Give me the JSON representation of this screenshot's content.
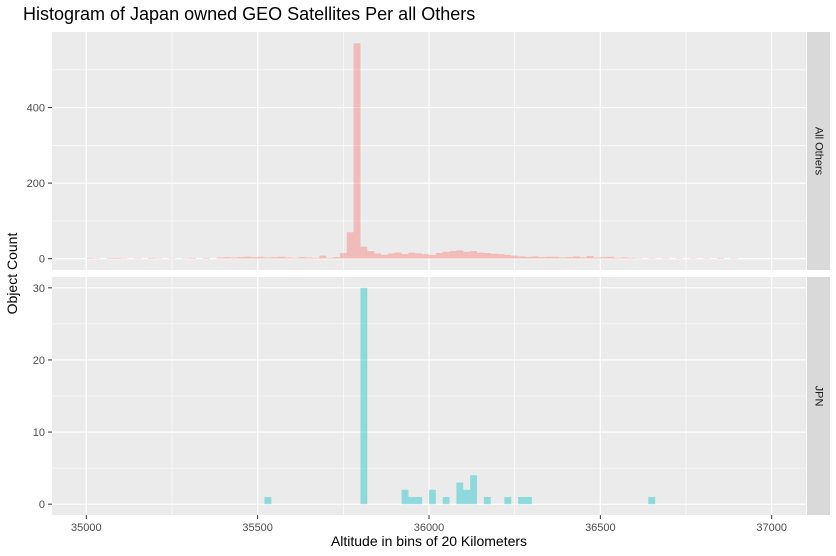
{
  "chart_data": {
    "type": "bar",
    "title": "Histogram of Japan owned GEO Satellites Per all Others",
    "xlabel": "Altitude in bins of 20 Kilometers",
    "ylabel": "Object Count",
    "xlim": [
      34900,
      37100
    ],
    "bin_width": 20,
    "x_ticks": [
      35000,
      35500,
      36000,
      36500,
      37000
    ],
    "legend": "none",
    "grid": true,
    "panels": [
      {
        "name": "All Others",
        "color": "#F8766D",
        "ylim": [
          -30,
          600
        ],
        "y_ticks": [
          0,
          200,
          400
        ],
        "bins": [
          {
            "x": 35010,
            "y": 2
          },
          {
            "x": 35030,
            "y": 1
          },
          {
            "x": 35070,
            "y": 2
          },
          {
            "x": 35090,
            "y": 2
          },
          {
            "x": 35110,
            "y": 1
          },
          {
            "x": 35150,
            "y": 1
          },
          {
            "x": 35190,
            "y": 2
          },
          {
            "x": 35210,
            "y": 1
          },
          {
            "x": 35250,
            "y": 1
          },
          {
            "x": 35290,
            "y": 1
          },
          {
            "x": 35310,
            "y": 2
          },
          {
            "x": 35350,
            "y": 2
          },
          {
            "x": 35390,
            "y": 3
          },
          {
            "x": 35410,
            "y": 4
          },
          {
            "x": 35430,
            "y": 3
          },
          {
            "x": 35450,
            "y": 4
          },
          {
            "x": 35470,
            "y": 5
          },
          {
            "x": 35490,
            "y": 4
          },
          {
            "x": 35510,
            "y": 5
          },
          {
            "x": 35530,
            "y": 3
          },
          {
            "x": 35550,
            "y": 4
          },
          {
            "x": 35570,
            "y": 5
          },
          {
            "x": 35590,
            "y": 3
          },
          {
            "x": 35610,
            "y": 2
          },
          {
            "x": 35630,
            "y": 4
          },
          {
            "x": 35650,
            "y": 3
          },
          {
            "x": 35670,
            "y": 2
          },
          {
            "x": 35690,
            "y": 8
          },
          {
            "x": 35710,
            "y": 2
          },
          {
            "x": 35730,
            "y": 4
          },
          {
            "x": 35750,
            "y": 15
          },
          {
            "x": 35770,
            "y": 70
          },
          {
            "x": 35790,
            "y": 570
          },
          {
            "x": 35810,
            "y": 32
          },
          {
            "x": 35830,
            "y": 20
          },
          {
            "x": 35850,
            "y": 14
          },
          {
            "x": 35870,
            "y": 10
          },
          {
            "x": 35890,
            "y": 14
          },
          {
            "x": 35910,
            "y": 16
          },
          {
            "x": 35930,
            "y": 12
          },
          {
            "x": 35950,
            "y": 16
          },
          {
            "x": 35970,
            "y": 14
          },
          {
            "x": 35990,
            "y": 12
          },
          {
            "x": 36010,
            "y": 10
          },
          {
            "x": 36030,
            "y": 15
          },
          {
            "x": 36050,
            "y": 18
          },
          {
            "x": 36070,
            "y": 20
          },
          {
            "x": 36090,
            "y": 22
          },
          {
            "x": 36110,
            "y": 18
          },
          {
            "x": 36130,
            "y": 20
          },
          {
            "x": 36150,
            "y": 16
          },
          {
            "x": 36170,
            "y": 15
          },
          {
            "x": 36190,
            "y": 13
          },
          {
            "x": 36210,
            "y": 12
          },
          {
            "x": 36230,
            "y": 10
          },
          {
            "x": 36250,
            "y": 8
          },
          {
            "x": 36270,
            "y": 6
          },
          {
            "x": 36290,
            "y": 5
          },
          {
            "x": 36310,
            "y": 6
          },
          {
            "x": 36330,
            "y": 4
          },
          {
            "x": 36350,
            "y": 5
          },
          {
            "x": 36370,
            "y": 5
          },
          {
            "x": 36390,
            "y": 3
          },
          {
            "x": 36410,
            "y": 4
          },
          {
            "x": 36430,
            "y": 6
          },
          {
            "x": 36450,
            "y": 3
          },
          {
            "x": 36470,
            "y": 7
          },
          {
            "x": 36490,
            "y": 3
          },
          {
            "x": 36510,
            "y": 4
          },
          {
            "x": 36530,
            "y": 5
          },
          {
            "x": 36550,
            "y": 2
          },
          {
            "x": 36570,
            "y": 3
          },
          {
            "x": 36590,
            "y": 2
          },
          {
            "x": 36610,
            "y": 1
          },
          {
            "x": 36650,
            "y": 1
          },
          {
            "x": 36690,
            "y": 1
          },
          {
            "x": 36730,
            "y": 1
          },
          {
            "x": 36770,
            "y": 1
          },
          {
            "x": 36810,
            "y": 1
          },
          {
            "x": 36850,
            "y": 2
          },
          {
            "x": 36890,
            "y": 1
          }
        ]
      },
      {
        "name": "JPN",
        "color": "#00BFC4",
        "ylim": [
          -1.5,
          31.5
        ],
        "y_ticks": [
          0,
          10,
          20,
          30
        ],
        "bins": [
          {
            "x": 35530,
            "y": 1
          },
          {
            "x": 35810,
            "y": 30
          },
          {
            "x": 35930,
            "y": 2
          },
          {
            "x": 35950,
            "y": 1
          },
          {
            "x": 35970,
            "y": 1
          },
          {
            "x": 36010,
            "y": 2
          },
          {
            "x": 36050,
            "y": 1
          },
          {
            "x": 36090,
            "y": 3
          },
          {
            "x": 36110,
            "y": 2
          },
          {
            "x": 36130,
            "y": 4
          },
          {
            "x": 36170,
            "y": 1
          },
          {
            "x": 36230,
            "y": 1
          },
          {
            "x": 36270,
            "y": 1
          },
          {
            "x": 36290,
            "y": 1
          },
          {
            "x": 36650,
            "y": 1
          }
        ]
      }
    ]
  }
}
